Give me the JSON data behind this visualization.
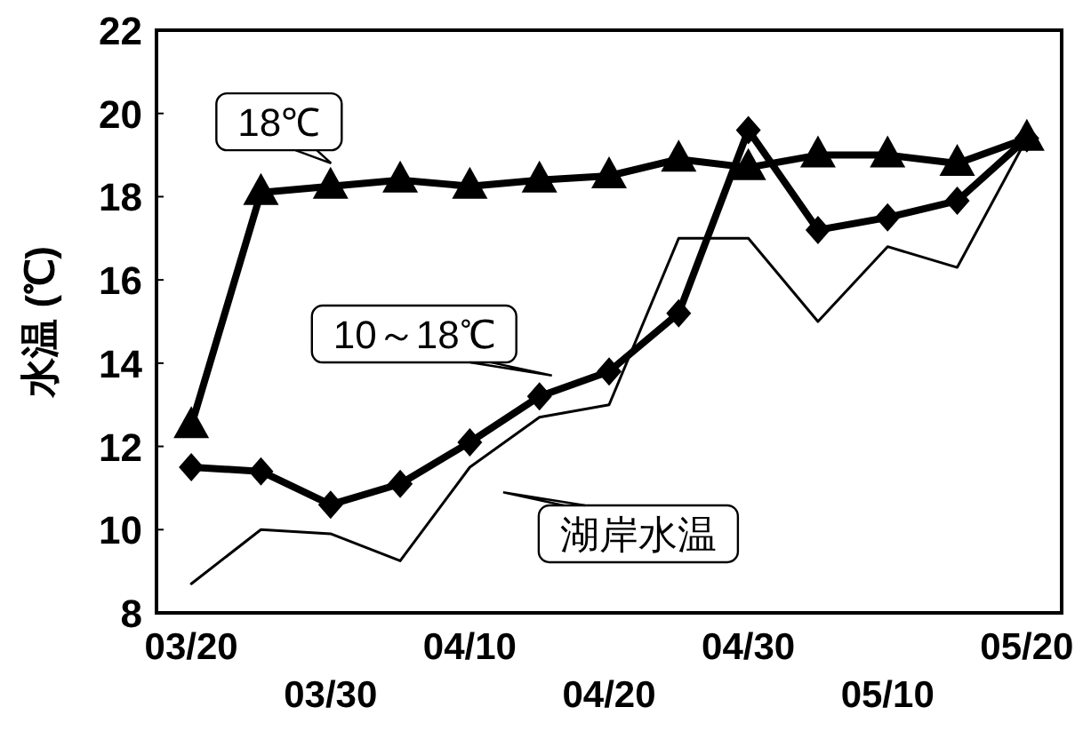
{
  "chart_data": {
    "type": "line",
    "categories": [
      "03/20",
      null,
      "03/30",
      null,
      "04/10",
      null,
      "04/20",
      null,
      "04/30",
      null,
      "05/10",
      null,
      "05/20"
    ],
    "ylabel": "水温 (℃)",
    "ylim": [
      8,
      22
    ],
    "yticks": [
      8,
      10,
      12,
      14,
      16,
      18,
      20,
      22
    ],
    "grid": false,
    "series": [
      {
        "name": "18℃",
        "color": "#000000",
        "marker": "triangle",
        "line_style": "solid",
        "values": [
          12.5,
          18.1,
          18.25,
          18.4,
          18.25,
          18.4,
          18.5,
          18.9,
          18.7,
          19.0,
          19.0,
          18.8,
          19.4
        ]
      },
      {
        "name": "10～18℃",
        "color": "#000000",
        "marker": "diamond",
        "line_style": "solid",
        "values": [
          11.5,
          11.4,
          10.6,
          11.1,
          12.1,
          13.2,
          13.8,
          15.2,
          19.6,
          17.2,
          17.5,
          17.9,
          19.4
        ]
      },
      {
        "name": "湖岸水温",
        "color": "#000000",
        "marker": "none",
        "line_style": "solid",
        "values": [
          8.7,
          10.0,
          9.9,
          9.25,
          11.5,
          12.7,
          13.0,
          17.0,
          17.0,
          15.0,
          16.8,
          16.3,
          19.4
        ]
      }
    ]
  }
}
